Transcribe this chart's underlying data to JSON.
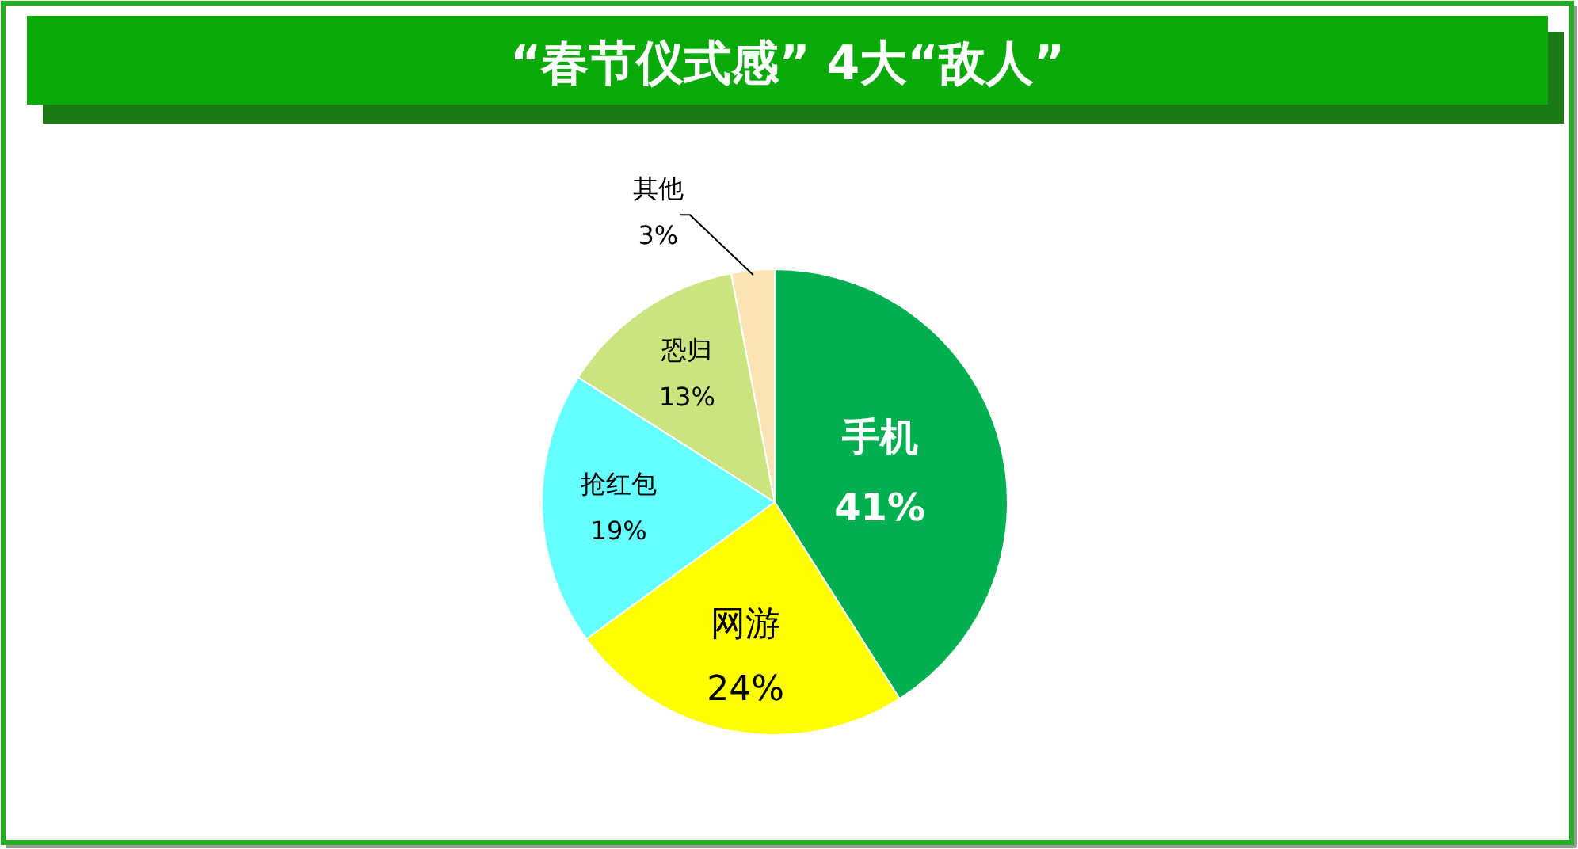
{
  "chart_data": {
    "type": "pie",
    "title": "“春节仪式感” 4大“敌人”",
    "categories": [
      "手机",
      "网游",
      "抢红包",
      "恐归",
      "其他"
    ],
    "values": [
      41,
      24,
      19,
      13,
      3
    ],
    "value_labels": [
      "41%",
      "24%",
      "19%",
      "13%",
      "3%"
    ],
    "colors": [
      "#00b050",
      "#ffff00",
      "#66ffff",
      "#cce480",
      "#fbe3b3"
    ]
  }
}
